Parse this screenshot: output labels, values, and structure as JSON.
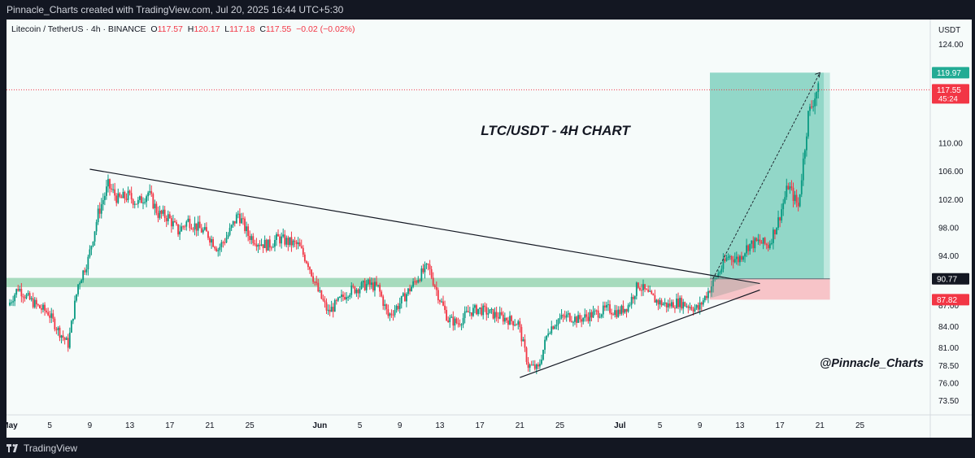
{
  "header": {
    "caption": "Pinnacle_Charts created with TradingView.com, Jul 20, 2025 16:44 UTC+5:30"
  },
  "legend": {
    "symbol": "Litecoin / TetherUS · 4h · BINANCE",
    "open": "117.57",
    "high": "120.17",
    "low": "117.18",
    "close": "117.55",
    "change": "−0.02 (−0.02%)"
  },
  "footer": {
    "brand": "TradingView"
  },
  "chart_data": {
    "type": "candlestick",
    "title": "LTC/USDT - 4H CHART",
    "watermark": "@Pinnacle_Charts",
    "symbol": "LTCUSDT",
    "interval": "4h",
    "exchange": "BINANCE",
    "currency": "USDT",
    "ylim": [
      71.5,
      127.5
    ],
    "xlim_days": [
      "2025-05-01",
      "2025-07-27"
    ],
    "y_ticks": [
      "124.00",
      "110.00",
      "106.00",
      "102.00",
      "98.00",
      "94.00",
      "87.00",
      "84.00",
      "81.00",
      "78.50",
      "76.00",
      "73.50"
    ],
    "x_ticks": [
      {
        "date": "2025-05-01",
        "label": "May",
        "bold": true
      },
      {
        "date": "2025-05-05",
        "label": "5"
      },
      {
        "date": "2025-05-09",
        "label": "9"
      },
      {
        "date": "2025-05-13",
        "label": "13"
      },
      {
        "date": "2025-05-17",
        "label": "17"
      },
      {
        "date": "2025-05-21",
        "label": "21"
      },
      {
        "date": "2025-05-25",
        "label": "25"
      },
      {
        "date": "2025-06-01",
        "label": "Jun",
        "bold": true
      },
      {
        "date": "2025-06-05",
        "label": "5"
      },
      {
        "date": "2025-06-09",
        "label": "9"
      },
      {
        "date": "2025-06-13",
        "label": "13"
      },
      {
        "date": "2025-06-17",
        "label": "17"
      },
      {
        "date": "2025-06-21",
        "label": "21"
      },
      {
        "date": "2025-06-25",
        "label": "25"
      },
      {
        "date": "2025-07-01",
        "label": "Jul",
        "bold": true
      },
      {
        "date": "2025-07-05",
        "label": "5"
      },
      {
        "date": "2025-07-09",
        "label": "9"
      },
      {
        "date": "2025-07-13",
        "label": "13"
      },
      {
        "date": "2025-07-17",
        "label": "17"
      },
      {
        "date": "2025-07-21",
        "label": "21"
      },
      {
        "date": "2025-07-25",
        "label": "25"
      }
    ],
    "price_path": [
      [
        "2025-05-01",
        87.0
      ],
      [
        "2025-05-02",
        89.5
      ],
      [
        "2025-05-03",
        88.0
      ],
      [
        "2025-05-04",
        86.8
      ],
      [
        "2025-05-05",
        86.0
      ],
      [
        "2025-05-06",
        83.5
      ],
      [
        "2025-05-07",
        81.5
      ],
      [
        "2025-05-08",
        90.0
      ],
      [
        "2025-05-09",
        93.5
      ],
      [
        "2025-05-10",
        100.0
      ],
      [
        "2025-05-11",
        104.0
      ],
      [
        "2025-05-12",
        102.0
      ],
      [
        "2025-05-13",
        102.5
      ],
      [
        "2025-05-14",
        101.5
      ],
      [
        "2025-05-15",
        103.0
      ],
      [
        "2025-05-16",
        100.0
      ],
      [
        "2025-05-17",
        99.5
      ],
      [
        "2025-05-18",
        97.5
      ],
      [
        "2025-05-19",
        99.0
      ],
      [
        "2025-05-20",
        98.0
      ],
      [
        "2025-05-21",
        97.0
      ],
      [
        "2025-05-22",
        95.0
      ],
      [
        "2025-05-23",
        97.0
      ],
      [
        "2025-05-24",
        100.0
      ],
      [
        "2025-05-25",
        97.0
      ],
      [
        "2025-05-26",
        96.0
      ],
      [
        "2025-05-27",
        95.5
      ],
      [
        "2025-05-28",
        96.5
      ],
      [
        "2025-05-29",
        96.0
      ],
      [
        "2025-05-30",
        95.5
      ],
      [
        "2025-05-31",
        93.0
      ],
      [
        "2025-06-01",
        89.0
      ],
      [
        "2025-06-02",
        86.0
      ],
      [
        "2025-06-03",
        87.5
      ],
      [
        "2025-06-04",
        89.0
      ],
      [
        "2025-06-05",
        89.5
      ],
      [
        "2025-06-06",
        90.0
      ],
      [
        "2025-06-07",
        89.5
      ],
      [
        "2025-06-08",
        85.5
      ],
      [
        "2025-06-09",
        87.0
      ],
      [
        "2025-06-10",
        89.0
      ],
      [
        "2025-06-11",
        91.0
      ],
      [
        "2025-06-12",
        92.5
      ],
      [
        "2025-06-13",
        88.5
      ],
      [
        "2025-06-14",
        85.0
      ],
      [
        "2025-06-15",
        84.5
      ],
      [
        "2025-06-16",
        86.0
      ],
      [
        "2025-06-17",
        86.5
      ],
      [
        "2025-06-18",
        86.0
      ],
      [
        "2025-06-19",
        85.5
      ],
      [
        "2025-06-20",
        85.0
      ],
      [
        "2025-06-21",
        84.5
      ],
      [
        "2025-06-22",
        78.5
      ],
      [
        "2025-06-23",
        78.0
      ],
      [
        "2025-06-24",
        83.5
      ],
      [
        "2025-06-25",
        85.0
      ],
      [
        "2025-06-26",
        85.5
      ],
      [
        "2025-06-27",
        85.0
      ],
      [
        "2025-06-28",
        85.5
      ],
      [
        "2025-06-29",
        86.0
      ],
      [
        "2025-06-30",
        86.5
      ],
      [
        "2025-07-01",
        86.0
      ],
      [
        "2025-07-02",
        87.0
      ],
      [
        "2025-07-03",
        90.0
      ],
      [
        "2025-07-04",
        88.5
      ],
      [
        "2025-07-05",
        87.5
      ],
      [
        "2025-07-06",
        87.0
      ],
      [
        "2025-07-07",
        87.5
      ],
      [
        "2025-07-08",
        87.0
      ],
      [
        "2025-07-09",
        86.5
      ],
      [
        "2025-07-10",
        89.0
      ],
      [
        "2025-07-11",
        91.5
      ],
      [
        "2025-07-12",
        94.0
      ],
      [
        "2025-07-13",
        93.5
      ],
      [
        "2025-07-14",
        95.5
      ],
      [
        "2025-07-15",
        96.0
      ],
      [
        "2025-07-16",
        95.5
      ],
      [
        "2025-07-17",
        99.0
      ],
      [
        "2025-07-18",
        104.0
      ],
      [
        "2025-07-19",
        101.0
      ],
      [
        "2025-07-20",
        114.0
      ],
      [
        "2025-07-20.9",
        117.55
      ]
    ],
    "support_zone": [
      89.6,
      90.9
    ],
    "horizontal_level": 90.77,
    "last_price": 117.55,
    "countdown": "45:24",
    "long_position": {
      "entry": 90.77,
      "target": 119.97,
      "stop": 87.82,
      "start": "2025-07-10",
      "end": "2025-07-22"
    },
    "trendlines": [
      {
        "name": "descending-resistance",
        "from": [
          "2025-05-09",
          106.3
        ],
        "to": [
          "2025-07-15",
          90.1
        ]
      },
      {
        "name": "ascending-support",
        "from": [
          "2025-06-21",
          76.8
        ],
        "to": [
          "2025-07-15",
          89.2
        ]
      }
    ],
    "colors": {
      "up": "#089981",
      "down": "#f23645",
      "background": "#f6fbfa",
      "target_zone": "#27b497",
      "stop_zone": "#f7b6bc",
      "support_zone": "#8cd0a8",
      "price_label": "#f23645",
      "entry_label": "#131722",
      "target_label": "#22ab94",
      "stop_label": "#f23645"
    }
  }
}
